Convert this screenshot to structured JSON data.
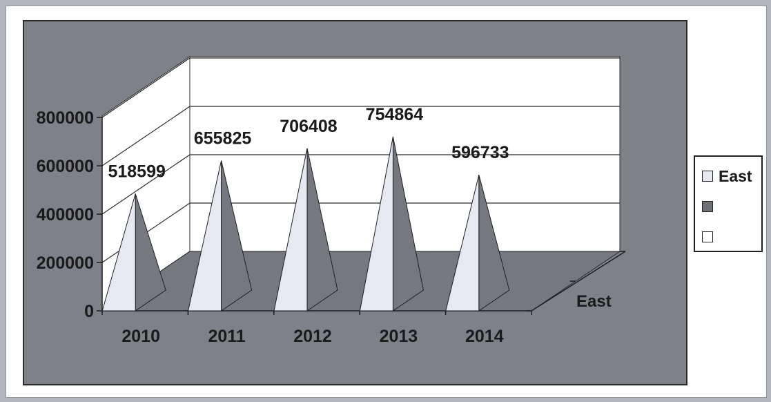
{
  "chart_data": {
    "type": "bar",
    "subtype": "3d-pyramid",
    "categories": [
      "2010",
      "2011",
      "2012",
      "2013",
      "2014"
    ],
    "series": [
      {
        "name": "East",
        "values": [
          518599,
          655825,
          706408,
          754864,
          596733
        ]
      }
    ],
    "y_ticks": [
      "0",
      "200000",
      "400000",
      "600000",
      "800000"
    ],
    "ylim": [
      0,
      800000
    ],
    "depth_axis_label": "East",
    "data_labels": [
      "518599",
      "655825",
      "706408",
      "754864",
      "596733"
    ],
    "gridlines": true,
    "legend_position": "right",
    "legend_entries": [
      "East",
      "",
      ""
    ],
    "colors": {
      "plot_area": "#7e8188",
      "pyramid_front": "#e6e8f2",
      "pyramid_side": "#75787f",
      "floor": "#75787f",
      "walls": "#ffffff",
      "legend_swatch_1": "#e6e8f2",
      "legend_swatch_2": "#6e7178",
      "legend_swatch_3": "#ffffff"
    }
  }
}
